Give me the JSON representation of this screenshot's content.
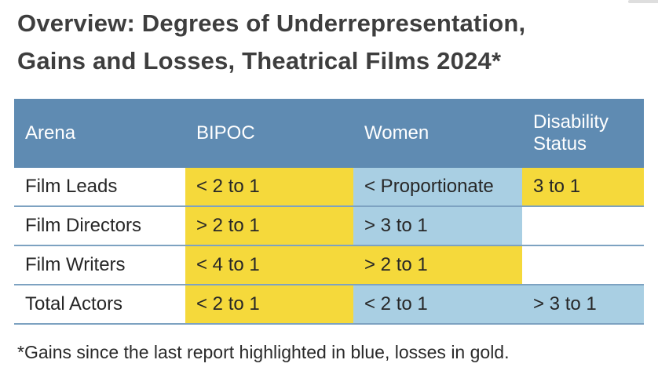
{
  "page": {
    "title_line1": "Overview:  Degrees of Underrepresentation,",
    "title_line2": "Gains and Losses, Theatrical Films 2024*",
    "footnote": "*Gains since the last report highlighted in blue, losses in gold."
  },
  "colors": {
    "header_blue": "#5f8bb2",
    "gold_highlight": "#f5d93b",
    "blue_highlight": "#a9cfe3",
    "row_divider": "#7da2c1",
    "title_text": "#3e3e3e",
    "cell_text": "#272727",
    "header_text": "#ffffff"
  },
  "table": {
    "columns": [
      {
        "label": "Arena"
      },
      {
        "label": "BIPOC"
      },
      {
        "label": "Women"
      },
      {
        "label": "Disability Status"
      }
    ],
    "rows": [
      {
        "arena": "Film Leads",
        "cells": [
          {
            "text": "< 2 to 1",
            "highlight": "gold"
          },
          {
            "text": "< Proportionate",
            "highlight": "blue"
          },
          {
            "text": "3 to 1",
            "highlight": "gold"
          }
        ]
      },
      {
        "arena": "Film Directors",
        "cells": [
          {
            "text": "> 2 to 1",
            "highlight": "gold"
          },
          {
            "text": "> 3 to 1",
            "highlight": "blue"
          },
          {
            "text": "",
            "highlight": "none"
          }
        ]
      },
      {
        "arena": "Film Writers",
        "cells": [
          {
            "text": "< 4 to 1",
            "highlight": "gold"
          },
          {
            "text": "> 2 to 1",
            "highlight": "gold"
          },
          {
            "text": "",
            "highlight": "none"
          }
        ]
      },
      {
        "arena": "Total Actors",
        "cells": [
          {
            "text": "< 2 to 1",
            "highlight": "gold"
          },
          {
            "text": "< 2 to 1",
            "highlight": "blue"
          },
          {
            "text": "> 3 to 1",
            "highlight": "blue"
          }
        ]
      }
    ]
  },
  "chart_data": {
    "type": "table",
    "title": "Overview:  Degrees of Underrepresentation, Gains and Losses, Theatrical Films 2024*",
    "columns": [
      "Arena",
      "BIPOC",
      "Women",
      "Disability Status"
    ],
    "rows": [
      [
        "Film Leads",
        "< 2 to 1",
        "< Proportionate",
        "3 to 1"
      ],
      [
        "Film Directors",
        "> 2 to 1",
        "> 3 to 1",
        ""
      ],
      [
        "Film Writers",
        "< 4 to 1",
        "> 2 to 1",
        ""
      ],
      [
        "Total Actors",
        "< 2 to 1",
        "< 2 to 1",
        "> 3 to 1"
      ]
    ],
    "cell_highlights": [
      [
        "none",
        "gold",
        "blue",
        "gold"
      ],
      [
        "none",
        "gold",
        "blue",
        "none"
      ],
      [
        "none",
        "gold",
        "gold",
        "none"
      ],
      [
        "none",
        "gold",
        "blue",
        "blue"
      ]
    ],
    "highlight_legend": {
      "blue": "gains since the last report",
      "gold": "losses"
    },
    "footnote": "*Gains since the last report highlighted in blue, losses in gold."
  }
}
